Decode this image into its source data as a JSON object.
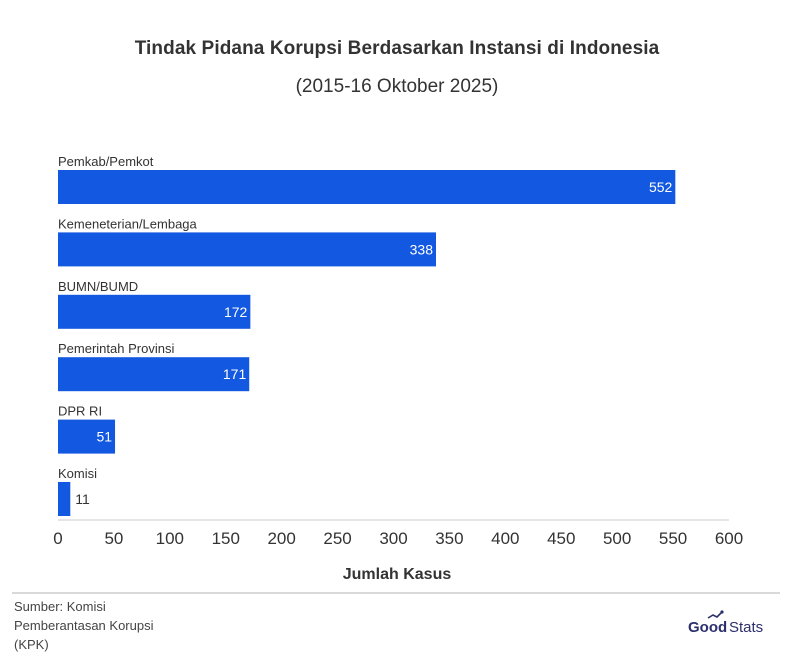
{
  "chart_data": {
    "type": "bar",
    "orientation": "horizontal",
    "title": "Tindak Pidana Korupsi Berdasarkan Instansi di Indonesia",
    "subtitle": "(2015-16 Oktober 2025)",
    "xlabel": "Jumlah Kasus",
    "ylabel": "",
    "categories": [
      "Pemkab/Pemkot",
      "Kemeneterian/Lembaga",
      "BUMN/BUMD",
      "Pemerintah Provinsi",
      "DPR RI",
      "Komisi"
    ],
    "values": [
      552,
      338,
      172,
      171,
      51,
      11
    ],
    "xlim": [
      0,
      600
    ],
    "ticks": [
      0,
      50,
      100,
      150,
      200,
      250,
      300,
      350,
      400,
      450,
      500,
      550,
      600
    ],
    "grid": false,
    "legend": "none",
    "bar_color": "#1358e0"
  },
  "footer": {
    "source_line1": "Sumber: Komisi",
    "source_line2": "Pemberantasan Korupsi",
    "source_line3": "(KPK)",
    "logo_good": "Good",
    "logo_stats": "Stats"
  },
  "colors": {
    "bar": "#1358e0",
    "text": "#333333",
    "axis": "#cccccc",
    "logo_good": "#2b2f6b",
    "logo_stats": "#2b2f6b"
  }
}
